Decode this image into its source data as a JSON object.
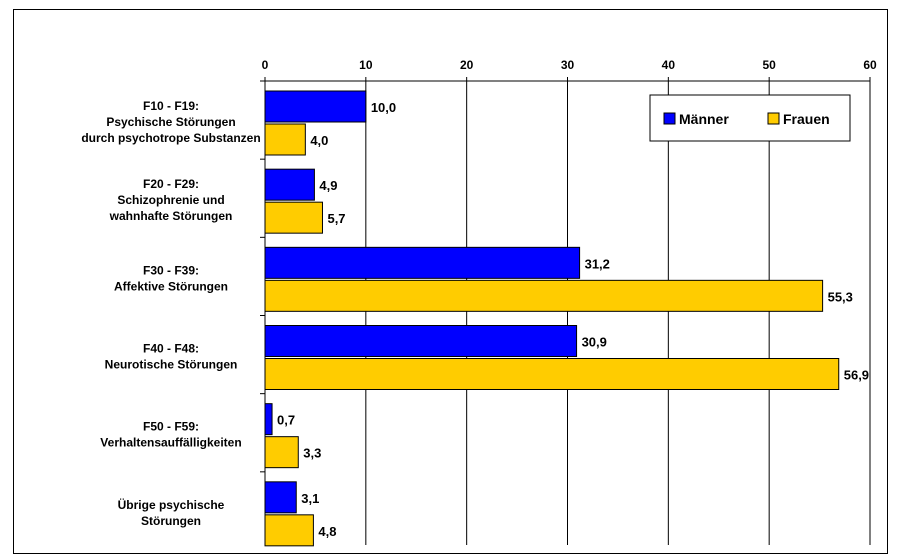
{
  "chart_data": {
    "type": "bar",
    "orientation": "horizontal",
    "title": "",
    "xlabel": "",
    "ylabel": "",
    "xlim": [
      0,
      60
    ],
    "x_ticks": [
      0,
      10,
      20,
      30,
      40,
      50,
      60
    ],
    "x_tick_labels": [
      "0",
      "10",
      "20",
      "30",
      "40",
      "50",
      "60"
    ],
    "x_axis_position": "top",
    "grid": "vertical",
    "legend_position": "top-right",
    "categories": [
      [
        "F10 - F19:",
        "Psychische Störungen",
        "durch psychotrope Substanzen"
      ],
      [
        "F20 - F29:",
        "Schizophrenie und",
        "wahnhafte Störungen"
      ],
      [
        "F30 - F39:",
        "Affektive Störungen"
      ],
      [
        "F40 - F48:",
        "Neurotische Störungen"
      ],
      [
        "F50 - F59:",
        "Verhaltensauffälligkeiten"
      ],
      [
        "Übrige psychische",
        "Störungen"
      ]
    ],
    "series": [
      {
        "name": "Männer",
        "color": "#0000ff",
        "values": [
          10.0,
          4.9,
          31.2,
          30.9,
          0.7,
          3.1
        ],
        "labels": [
          "10,0",
          "4,9",
          "31,2",
          "30,9",
          "0,7",
          "3,1"
        ]
      },
      {
        "name": "Frauen",
        "color": "#ffcc00",
        "values": [
          4.0,
          5.7,
          55.3,
          56.9,
          3.3,
          4.8
        ],
        "labels": [
          "4,0",
          "5,7",
          "55,3",
          "56,9",
          "3,3",
          "4,8"
        ]
      }
    ]
  }
}
